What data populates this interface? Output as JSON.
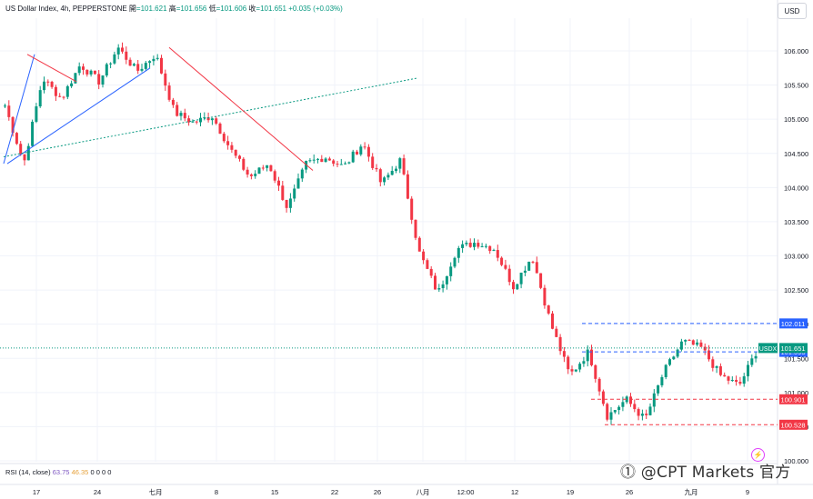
{
  "header": {
    "symbol": "US Dollar Index, 4h, PEPPERSTONE",
    "open_label": "開",
    "open": "=101.621",
    "high_label": "高",
    "high": "=101.656",
    "low_label": "低",
    "low": "=101.606",
    "close_label": "收",
    "close": "=101.651",
    "change": "+0.035 (+0.03%)"
  },
  "currency": "USD",
  "rsi": {
    "label": "RSI (14, close)",
    "value1": "63.75",
    "value2": "46.35",
    "extra": "0 0 0 0"
  },
  "watermark": "⓵ @CPT Markets 官方",
  "colors": {
    "up": "#089981",
    "down": "#f23645",
    "axis_text": "#131722",
    "blue_tag": "#2962ff",
    "red_tag": "#f23645",
    "green_tag": "#089981"
  },
  "chart_data": {
    "type": "candlestick",
    "title": "US Dollar Index, 4h, PEPPERSTONE",
    "ylim": [
      99.6,
      106.5
    ],
    "y_ticks": [
      "106.000",
      "105.500",
      "105.000",
      "104.500",
      "104.000",
      "103.500",
      "103.000",
      "102.500",
      "102.000",
      "101.500",
      "101.000",
      "100.500",
      "100.000"
    ],
    "x_ticks": [
      "17",
      "24",
      "七月",
      "8",
      "15",
      "22",
      "26",
      "八月",
      "12:00",
      "12",
      "19",
      "26",
      "九月",
      "9"
    ],
    "close_path": [
      {
        "x": "17",
        "y": 105.2
      },
      {
        "x": "17",
        "y": 104.35
      },
      {
        "x": "17",
        "y": 105.6
      },
      {
        "x": "24",
        "y": 105.3
      },
      {
        "x": "24",
        "y": 105.8
      },
      {
        "x": "24",
        "y": 105.55
      },
      {
        "x": "七月",
        "y": 106.05
      },
      {
        "x": "七月",
        "y": 105.7
      },
      {
        "x": "七月",
        "y": 105.95
      },
      {
        "x": "8",
        "y": 105.1
      },
      {
        "x": "8",
        "y": 104.95
      },
      {
        "x": "8",
        "y": 105.05
      },
      {
        "x": "15",
        "y": 104.55
      },
      {
        "x": "15",
        "y": 104.15
      },
      {
        "x": "15",
        "y": 104.35
      },
      {
        "x": "22",
        "y": 103.7
      },
      {
        "x": "22",
        "y": 104.35
      },
      {
        "x": "26",
        "y": 104.45
      },
      {
        "x": "26",
        "y": 104.3
      },
      {
        "x": "八月",
        "y": 104.65
      },
      {
        "x": "八月",
        "y": 104.05
      },
      {
        "x": "八月",
        "y": 104.4
      },
      {
        "x": "12:00",
        "y": 103.05
      },
      {
        "x": "12:00",
        "y": 102.45
      },
      {
        "x": "12:00",
        "y": 103.1
      },
      {
        "x": "12",
        "y": 103.2
      },
      {
        "x": "12",
        "y": 103.1
      },
      {
        "x": "19",
        "y": 102.55
      },
      {
        "x": "19",
        "y": 103.0
      },
      {
        "x": "19",
        "y": 102.0
      },
      {
        "x": "19",
        "y": 101.25
      },
      {
        "x": "26",
        "y": 101.6
      },
      {
        "x": "26",
        "y": 100.65
      },
      {
        "x": "26",
        "y": 100.9
      },
      {
        "x": "26",
        "y": 100.6
      },
      {
        "x": "九月",
        "y": 101.3
      },
      {
        "x": "九月",
        "y": 101.75
      },
      {
        "x": "九月",
        "y": 101.65
      },
      {
        "x": "九月",
        "y": 101.25
      },
      {
        "x": "9",
        "y": 101.1
      },
      {
        "x": "9",
        "y": 101.65
      }
    ],
    "horizontal_levels": [
      {
        "value": "102.011",
        "color": "#2962ff",
        "style": "dashed"
      },
      {
        "value": "101.595",
        "color": "#2962ff",
        "style": "dashed"
      },
      {
        "value": "100.901",
        "color": "#f23645",
        "style": "dashed"
      },
      {
        "value": "100.528",
        "color": "#f23645",
        "style": "dashed"
      }
    ],
    "last_price": {
      "symbol": "USDX",
      "value": "101.651"
    },
    "grid": true
  }
}
